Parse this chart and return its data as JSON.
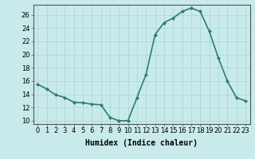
{
  "x": [
    0,
    1,
    2,
    3,
    4,
    5,
    6,
    7,
    8,
    9,
    10,
    11,
    12,
    13,
    14,
    15,
    16,
    17,
    18,
    19,
    20,
    21,
    22,
    23
  ],
  "y": [
    15.5,
    14.8,
    13.9,
    13.5,
    12.8,
    12.7,
    12.5,
    12.4,
    10.5,
    10.0,
    10.0,
    13.5,
    17.0,
    23.0,
    24.8,
    25.5,
    26.5,
    27.0,
    26.5,
    23.5,
    19.5,
    16.0,
    13.5,
    13.0
  ],
  "line_color": "#2e7d6e",
  "marker": "D",
  "marker_size": 2.0,
  "bg_color": "#c8eaea",
  "grid_color": "#aad4d4",
  "xlabel": "Humidex (Indice chaleur)",
  "xlabel_fontsize": 7,
  "ylabel_ticks": [
    10,
    12,
    14,
    16,
    18,
    20,
    22,
    24,
    26
  ],
  "xticks": [
    0,
    1,
    2,
    3,
    4,
    5,
    6,
    7,
    8,
    9,
    10,
    11,
    12,
    13,
    14,
    15,
    16,
    17,
    18,
    19,
    20,
    21,
    22,
    23
  ],
  "ylim": [
    9.5,
    27.5
  ],
  "xlim": [
    -0.5,
    23.5
  ],
  "tick_fontsize": 6.0,
  "line_width": 1.2
}
